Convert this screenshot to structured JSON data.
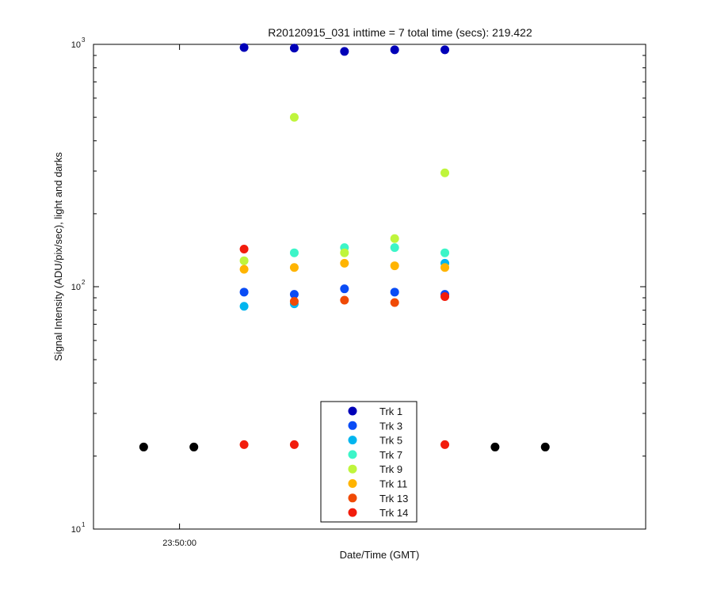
{
  "chart_data": {
    "type": "scatter",
    "title": "R20120915_031 inttime = 7 total time (secs): 219.422",
    "xlabel": "Date/Time (GMT)",
    "ylabel": "Signal Intensity (ADU/pix/sec), light and darks",
    "yscale": "log",
    "ylim": [
      10,
      1000
    ],
    "y_ticks": [
      {
        "base": "10",
        "exp": "1"
      },
      {
        "base": "10",
        "exp": "2"
      },
      {
        "base": "10",
        "exp": "3"
      }
    ],
    "x_tick_label": "23:50:00",
    "x_times_sec": [
      0,
      7,
      14,
      21,
      28,
      35,
      42,
      49,
      56
    ],
    "xlim": [
      -7,
      70
    ],
    "x_tick_at": 5,
    "legend_position": "bottom-center",
    "series": [
      {
        "name": "Trk 1",
        "color": "#0000b8",
        "values": [
          null,
          null,
          970,
          965,
          935,
          950,
          950,
          null,
          null
        ]
      },
      {
        "name": "Trk 3",
        "color": "#0a4cf5",
        "values": [
          null,
          null,
          95,
          93,
          98,
          95,
          93,
          null,
          null
        ]
      },
      {
        "name": "Trk 5",
        "color": "#00b5ef",
        "values": [
          null,
          null,
          83,
          85,
          null,
          null,
          125,
          null,
          null
        ]
      },
      {
        "name": "Trk 7",
        "color": "#3cf5c8",
        "values": [
          null,
          null,
          null,
          138,
          145,
          145,
          138,
          null,
          null
        ]
      },
      {
        "name": "Trk 9",
        "color": "#bff53c",
        "values": [
          null,
          null,
          128,
          500,
          138,
          158,
          295,
          null,
          null
        ]
      },
      {
        "name": "Trk 11",
        "color": "#ffb400",
        "values": [
          null,
          null,
          118,
          120,
          125,
          122,
          120,
          null,
          null
        ]
      },
      {
        "name": "Trk 13",
        "color": "#f04a05",
        "values": [
          null,
          null,
          null,
          87,
          88,
          86,
          null,
          null,
          null
        ]
      },
      {
        "name": "Trk 14",
        "color": "#f21c0c",
        "values": [
          null,
          null,
          143,
          null,
          null,
          null,
          91,
          null,
          null
        ]
      },
      {
        "name": "",
        "color": "#f21c0c",
        "values": [
          null,
          null,
          22.3,
          22.3,
          null,
          null,
          22.3,
          null,
          null
        ]
      },
      {
        "name": "",
        "color": "#000000",
        "values": [
          21.8,
          21.8,
          null,
          null,
          null,
          null,
          null,
          21.8,
          21.8
        ]
      }
    ]
  }
}
